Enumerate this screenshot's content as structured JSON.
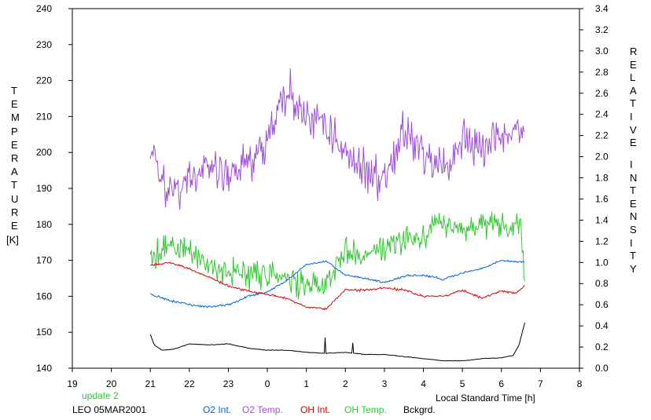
{
  "chart_data": {
    "type": "line",
    "left_axis": {
      "label_letters": [
        "T",
        "E",
        "M",
        "P",
        "E",
        "R",
        "A",
        "T",
        "U",
        "R",
        "E"
      ],
      "unit": "[K]",
      "range": [
        140,
        240
      ],
      "ticks": [
        "140",
        "150",
        "160",
        "170",
        "180",
        "190",
        "200",
        "210",
        "220",
        "230",
        "240"
      ]
    },
    "right_axis": {
      "label_word1": [
        "R",
        "E",
        "L",
        "A",
        "T",
        "I",
        "V",
        "E"
      ],
      "label_word2": [
        "I",
        "N",
        "T",
        "E",
        "N",
        "S",
        "I",
        "T",
        "Y"
      ],
      "range": [
        0.0,
        3.4
      ],
      "ticks": [
        "0.0",
        "0.2",
        "0.4",
        "0.6",
        "0.8",
        "1.0",
        "1.2",
        "1.4",
        "1.6",
        "1.8",
        "2.0",
        "2.2",
        "2.4",
        "2.6",
        "2.8",
        "3.0",
        "3.2",
        "3.4"
      ]
    },
    "x_axis": {
      "label": "Local Standard Time [h]",
      "range": [
        19,
        32
      ],
      "ticks": [
        "19",
        "20",
        "21",
        "22",
        "23",
        "0",
        "1",
        "2",
        "3",
        "4",
        "5",
        "6",
        "7",
        "8"
      ]
    },
    "footer": {
      "update": "update 2",
      "station": "LEO 05MAR2001"
    },
    "legend": [
      {
        "label": "O2 Int.",
        "color": "#0064dc"
      },
      {
        "label": "O2 Temp.",
        "color": "#a050dc"
      },
      {
        "label": "OH Int.",
        "color": "#dc0000"
      },
      {
        "label": "OH Temp.",
        "color": "#32c832"
      },
      {
        "label": "Bckgrd.",
        "color": "#000000"
      }
    ],
    "x_start": 21.0,
    "x_end": 30.6,
    "series": [
      {
        "name": "O2 Temp.",
        "axis": "left",
        "color": "#a050dc",
        "noise": 9,
        "x": [
          21.0,
          21.5,
          22.0,
          22.5,
          23.0,
          23.5,
          24.0,
          24.3,
          24.6,
          25.0,
          25.5,
          26.0,
          26.5,
          27.0,
          27.5,
          28.0,
          28.5,
          29.0,
          29.5,
          30.0,
          30.6
        ],
        "y": [
          200,
          188,
          192,
          196,
          193,
          197,
          203,
          213,
          216,
          210,
          208,
          200,
          195,
          193,
          206,
          200,
          193,
          204,
          200,
          205,
          205
        ]
      },
      {
        "name": "OH Temp.",
        "axis": "left",
        "color": "#32c832",
        "noise": 6,
        "x": [
          21.0,
          21.5,
          22.0,
          22.5,
          23.0,
          23.5,
          24.0,
          24.5,
          25.0,
          25.5,
          26.0,
          26.5,
          27.0,
          27.5,
          28.0,
          28.3,
          28.6,
          29.0,
          29.5,
          30.0,
          30.5,
          30.6
        ],
        "y": [
          170,
          175,
          172,
          168,
          167,
          166,
          166,
          165,
          162,
          163,
          173,
          172,
          174,
          176,
          176,
          182,
          180,
          178,
          180,
          179,
          180,
          165
        ]
      },
      {
        "name": "O2 Int.",
        "axis": "right",
        "color": "#0064dc",
        "noise": 0.015,
        "x": [
          21.0,
          21.5,
          22.0,
          22.5,
          23.0,
          23.5,
          24.0,
          24.5,
          25.0,
          25.5,
          26.0,
          26.5,
          27.0,
          27.5,
          28.0,
          28.5,
          29.0,
          29.5,
          30.0,
          30.6
        ],
        "y": [
          0.7,
          0.64,
          0.6,
          0.58,
          0.6,
          0.68,
          0.72,
          0.83,
          0.98,
          1.01,
          0.88,
          0.85,
          0.81,
          0.87,
          0.88,
          0.84,
          0.9,
          0.94,
          1.02,
          1.0
        ]
      },
      {
        "name": "OH Int.",
        "axis": "right",
        "color": "#dc0000",
        "noise": 0.015,
        "x": [
          21.0,
          21.5,
          22.0,
          22.5,
          23.0,
          23.5,
          24.0,
          24.5,
          25.0,
          25.5,
          26.0,
          26.5,
          27.0,
          27.5,
          28.0,
          28.5,
          29.0,
          29.5,
          30.0,
          30.4,
          30.6
        ],
        "y": [
          0.97,
          1.0,
          0.94,
          0.86,
          0.78,
          0.73,
          0.7,
          0.66,
          0.58,
          0.56,
          0.74,
          0.74,
          0.76,
          0.74,
          0.68,
          0.68,
          0.74,
          0.66,
          0.73,
          0.71,
          0.78
        ]
      },
      {
        "name": "Bckgrd.",
        "axis": "right",
        "color": "#000000",
        "noise": 0.004,
        "x": [
          21.0,
          21.1,
          21.3,
          21.6,
          22.0,
          22.5,
          23.0,
          23.5,
          24.0,
          24.5,
          25.0,
          25.5,
          26.0,
          26.5,
          27.0,
          27.5,
          28.0,
          28.5,
          29.0,
          29.5,
          30.0,
          30.3,
          30.45,
          30.6
        ],
        "y": [
          0.32,
          0.22,
          0.17,
          0.18,
          0.23,
          0.22,
          0.23,
          0.19,
          0.17,
          0.17,
          0.15,
          0.14,
          0.15,
          0.13,
          0.13,
          0.11,
          0.09,
          0.07,
          0.07,
          0.09,
          0.1,
          0.12,
          0.22,
          0.43
        ]
      }
    ],
    "spikes": [
      {
        "series": "Bckgrd.",
        "x": 25.48,
        "y": 0.29
      },
      {
        "series": "Bckgrd.",
        "x": 26.18,
        "y": 0.24
      }
    ]
  }
}
